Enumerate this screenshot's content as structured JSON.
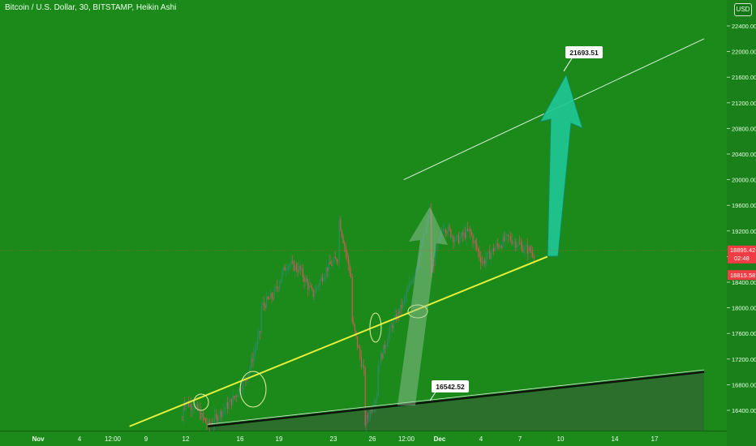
{
  "title": "Bitcoin / U.S. Dollar, 30, BITSTAMP, Heikin Ashi",
  "currency": "USD",
  "colors": {
    "background": "#1b8a1b",
    "axis_panel": "#1a801a",
    "support_line": "#e6f03c",
    "target_arrow": "#1fc795",
    "up_candle": "#2d8a6a",
    "down_candle": "#e0555b",
    "price_tag": "#f03c44"
  },
  "price_labels": {
    "current": "18895.42",
    "countdown": "02:48",
    "previous_close": "18815.58"
  },
  "annotations": [
    {
      "text": "21693.51",
      "y": 21693.51
    },
    {
      "text": "16542.52",
      "y": 16542.52
    }
  ],
  "chart_data": {
    "type": "candlestick",
    "title": "Bitcoin / U.S. Dollar, 30, BITSTAMP, Heikin Ashi",
    "ylim": [
      16150,
      22700
    ],
    "y_ticks": [
      "16400.00",
      "16800.00",
      "17200.00",
      "17600.00",
      "18000.00",
      "18400.00",
      "18800.00",
      "19200.00",
      "19600.00",
      "20000.00",
      "20400.00",
      "20800.00",
      "21200.00",
      "21600.00",
      "22000.00",
      "22400.00"
    ],
    "x_ticks": [
      "Nov",
      "4",
      "12:00",
      "9",
      "12",
      "16",
      "19",
      "23",
      "26",
      "12:00",
      "Dec",
      "4",
      "7",
      "10",
      "14",
      "17"
    ],
    "price_path": [
      [
        "Nov 12",
        16250
      ],
      [
        "Nov 12",
        16550
      ],
      [
        "Nov 13",
        16450
      ],
      [
        "Nov 14",
        16150
      ],
      [
        "Nov 16",
        16600
      ],
      [
        "Nov 17",
        16950
      ],
      [
        "Nov 18",
        17650
      ],
      [
        "Nov 18",
        18000
      ],
      [
        "Nov 19",
        18200
      ],
      [
        "Nov 20",
        18700
      ],
      [
        "Nov 21",
        18600
      ],
      [
        "Nov 22",
        18200
      ],
      [
        "Nov 23",
        18600
      ],
      [
        "Nov 24",
        18800
      ],
      [
        "Nov 24",
        19400
      ],
      [
        "Nov 25",
        18400
      ],
      [
        "Nov 25",
        17800
      ],
      [
        "Nov 26",
        16900
      ],
      [
        "Nov 26",
        16200
      ],
      [
        "Nov 27",
        16700
      ],
      [
        "Nov 27",
        17100
      ],
      [
        "Nov 28",
        17700
      ],
      [
        "Nov 29",
        18100
      ],
      [
        "Nov 30",
        18700
      ],
      [
        "Dec 1",
        19500
      ],
      [
        "Dec 1",
        18500
      ],
      [
        "Dec 2",
        19300
      ],
      [
        "Dec 3",
        19050
      ],
      [
        "Dec 4",
        19200
      ],
      [
        "Dec 5",
        18700
      ],
      [
        "Dec 6",
        18950
      ],
      [
        "Dec 7",
        19100
      ],
      [
        "Dec 8",
        18950
      ],
      [
        "Dec 9",
        18850
      ]
    ],
    "trendlines": [
      {
        "name": "support",
        "points": [
          [
            "Nov 8",
            16150
          ],
          [
            "Dec 10",
            18800
          ]
        ]
      },
      {
        "name": "upper-channel",
        "points": [
          [
            "Oct 30",
            20000
          ],
          [
            "Dec 22",
            22200
          ]
        ]
      },
      {
        "name": "lower-channel",
        "points": [
          [
            "Nov 14",
            16150
          ],
          [
            "Dec 22",
            17000
          ]
        ]
      }
    ],
    "targets": [
      21693.51,
      16542.52
    ]
  }
}
